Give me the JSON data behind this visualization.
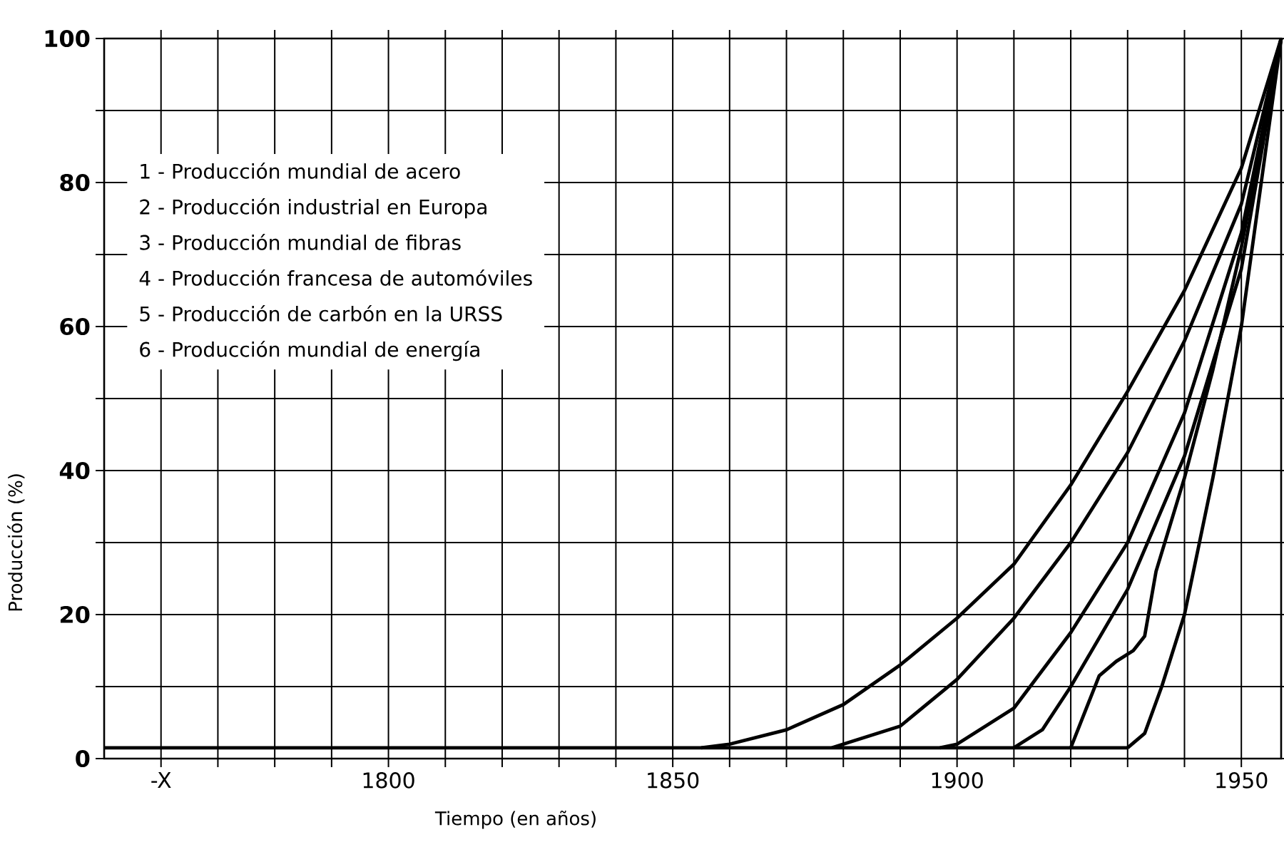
{
  "chart_data": {
    "type": "line",
    "xlabel": "Tiempo (en años)",
    "ylabel": "Producción (%)",
    "xlim": [
      1750,
      1957
    ],
    "ylim": [
      0,
      100
    ],
    "xticks": [
      {
        "value": 1760,
        "label": "-X"
      },
      {
        "value": 1770,
        "label": null
      },
      {
        "value": 1780,
        "label": null
      },
      {
        "value": 1790,
        "label": null
      },
      1800,
      {
        "value": 1810,
        "label": null
      },
      {
        "value": 1820,
        "label": null
      },
      {
        "value": 1830,
        "label": null
      },
      {
        "value": 1840,
        "label": null
      },
      1850,
      {
        "value": 1860,
        "label": null
      },
      {
        "value": 1870,
        "label": null
      },
      {
        "value": 1880,
        "label": null
      },
      {
        "value": 1890,
        "label": null
      },
      1900,
      {
        "value": 1910,
        "label": null
      },
      {
        "value": 1920,
        "label": null
      },
      {
        "value": 1930,
        "label": null
      },
      {
        "value": 1940,
        "label": null
      },
      1950
    ],
    "yticks": [
      0,
      {
        "value": 10,
        "label": null
      },
      20,
      {
        "value": 30,
        "label": null
      },
      40,
      {
        "value": 50,
        "label": null
      },
      60,
      {
        "value": 70,
        "label": null
      },
      80,
      {
        "value": 90,
        "label": null
      },
      100
    ],
    "grid": true,
    "annotations": [
      "1 - Producción mundial de acero",
      "2 - Producción industrial en Europa",
      "3 - Producción mundial de fibras",
      "4 - Producción francesa de automóviles",
      "5 - Producción de carbón en la URSS",
      "6 - Producción mundial de energía"
    ],
    "series": [
      {
        "color": "#000000",
        "x": [
          1750,
          1930
        ],
        "values": [
          1.5,
          1.5
        ]
      },
      {
        "color": "#000000",
        "x": [
          1855,
          1860,
          1870,
          1880,
          1890,
          1900,
          1910,
          1920,
          1930,
          1940,
          1950,
          1957
        ],
        "values": [
          1.5,
          2,
          4,
          7.5,
          13,
          19.5,
          27,
          38,
          51,
          65,
          82,
          100
        ]
      },
      {
        "color": "#000000",
        "x": [
          1878,
          1890,
          1900,
          1910,
          1920,
          1930,
          1940,
          1950,
          1957
        ],
        "values": [
          1.5,
          4.5,
          11,
          19.5,
          30,
          42.5,
          58,
          77,
          100
        ]
      },
      {
        "color": "#000000",
        "x": [
          1897,
          1900,
          1910,
          1920,
          1930,
          1940,
          1950,
          1957
        ],
        "values": [
          1.5,
          2,
          7,
          17.5,
          30,
          48,
          73,
          100
        ]
      },
      {
        "color": "#000000",
        "x": [
          1910,
          1915,
          1920,
          1930,
          1940,
          1950,
          1957
        ],
        "values": [
          1.5,
          4,
          10,
          23.5,
          42,
          68,
          100
        ]
      },
      {
        "color": "#000000",
        "x": [
          1920,
          1922,
          1925,
          1928,
          1931,
          1933,
          1935,
          1940,
          1945,
          1950,
          1957
        ],
        "values": [
          1.5,
          5.5,
          11.5,
          13.5,
          15,
          17,
          26,
          39,
          54,
          71,
          100
        ]
      },
      {
        "color": "#000000",
        "x": [
          1930,
          1933,
          1936,
          1940,
          1945,
          1950,
          1957
        ],
        "values": [
          1.5,
          3.5,
          10,
          20,
          39,
          60,
          100
        ]
      }
    ]
  }
}
